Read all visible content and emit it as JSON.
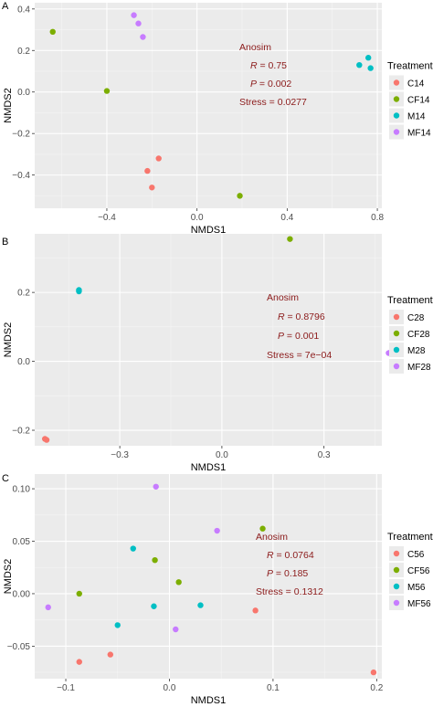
{
  "chart_data": [
    {
      "type": "scatter",
      "panel_label": "A",
      "xlabel": "NMDS1",
      "ylabel": "NMDS2",
      "xlim": [
        -0.72,
        0.82
      ],
      "ylim": [
        -0.56,
        0.43
      ],
      "x_ticks": [
        -0.4,
        0.0,
        0.4,
        0.8
      ],
      "x_tick_labels": [
        "−0.4",
        "0.0",
        "0.4",
        "0.8"
      ],
      "y_ticks": [
        0.4,
        0.2,
        0.0,
        -0.2,
        -0.4
      ],
      "y_tick_labels": [
        "0.4",
        "0.2",
        "0.0",
        "−0.2",
        "−0.4"
      ],
      "grid": true,
      "legend": {
        "title": "Treatment",
        "position": "right",
        "entries": [
          "C14",
          "CF14",
          "M14",
          "MF14"
        ]
      },
      "annotations": [
        "Anosim",
        "R = 0.75",
        "P = 0.002",
        "Stress = 0.0277"
      ],
      "series": [
        {
          "name": "C14",
          "color": "#F8766D",
          "points": [
            [
              -0.17,
              -0.32
            ],
            [
              -0.22,
              -0.38
            ],
            [
              -0.2,
              -0.46
            ]
          ]
        },
        {
          "name": "CF14",
          "color": "#7CAE00",
          "points": [
            [
              -0.64,
              0.29
            ],
            [
              -0.4,
              0.005
            ],
            [
              0.19,
              -0.5
            ]
          ]
        },
        {
          "name": "M14",
          "color": "#00BFC4",
          "points": [
            [
              0.72,
              0.13
            ],
            [
              0.76,
              0.165
            ],
            [
              0.77,
              0.115
            ]
          ]
        },
        {
          "name": "MF14",
          "color": "#C77CFF",
          "points": [
            [
              -0.28,
              0.37
            ],
            [
              -0.26,
              0.33
            ],
            [
              -0.24,
              0.265
            ]
          ]
        }
      ]
    },
    {
      "type": "scatter",
      "panel_label": "B",
      "xlabel": "NMDS1",
      "ylabel": "NMDS2",
      "xlim": [
        -0.55,
        0.47
      ],
      "ylim": [
        -0.245,
        0.37
      ],
      "x_ticks": [
        -0.3,
        0.0,
        0.3
      ],
      "x_tick_labels": [
        "−0.3",
        "0.0",
        "0.3"
      ],
      "y_ticks": [
        0.2,
        0.0,
        -0.2
      ],
      "y_tick_labels": [
        "0.2",
        "0.0",
        "−0.2"
      ],
      "grid": true,
      "legend": {
        "title": "Treatment",
        "position": "right",
        "entries": [
          "C28",
          "CF28",
          "M28",
          "MF28"
        ]
      },
      "annotations": [
        "Anosim",
        "R = 0.8796",
        "P = 0.001",
        "Stress = 7e−04"
      ],
      "series": [
        {
          "name": "C28",
          "color": "#F8766D",
          "points": [
            [
              -0.52,
              -0.225
            ],
            [
              -0.515,
              -0.228
            ]
          ]
        },
        {
          "name": "CF28",
          "color": "#7CAE00",
          "points": [
            [
              0.2,
              0.355
            ]
          ]
        },
        {
          "name": "M28",
          "color": "#00BFC4",
          "points": [
            [
              -0.42,
              0.207
            ],
            [
              -0.42,
              0.203
            ]
          ]
        },
        {
          "name": "MF28",
          "color": "#C77CFF",
          "points": [
            [
              0.49,
              0.024
            ],
            [
              0.495,
              0.026
            ],
            [
              0.5,
              0.025
            ]
          ]
        }
      ]
    },
    {
      "type": "scatter",
      "panel_label": "C",
      "xlabel": "NMDS1",
      "ylabel": "NMDS2",
      "xlim": [
        -0.13,
        0.205
      ],
      "ylim": [
        -0.081,
        0.114
      ],
      "x_ticks": [
        -0.1,
        0.0,
        0.1,
        0.2
      ],
      "x_tick_labels": [
        "−0.1",
        "0.0",
        "0.1",
        "0.2"
      ],
      "y_ticks": [
        0.1,
        0.05,
        0.0,
        -0.05
      ],
      "y_tick_labels": [
        "0.10",
        "0.05",
        "0.00",
        "−0.05"
      ],
      "grid": true,
      "legend": {
        "title": "Treatment",
        "position": "right",
        "entries": [
          "C56",
          "CF56",
          "M56",
          "MF56"
        ]
      },
      "annotations": [
        "Anosim",
        "R = 0.0764",
        "P = 0.185",
        "Stress = 0.1312"
      ],
      "series": [
        {
          "name": "C56",
          "color": "#F8766D",
          "points": [
            [
              -0.087,
              -0.065
            ],
            [
              -0.057,
              -0.058
            ],
            [
              0.083,
              -0.016
            ],
            [
              0.197,
              -0.075
            ]
          ]
        },
        {
          "name": "CF56",
          "color": "#7CAE00",
          "points": [
            [
              -0.087,
              0.0
            ],
            [
              -0.014,
              0.032
            ],
            [
              0.009,
              0.011
            ],
            [
              0.09,
              0.062
            ]
          ]
        },
        {
          "name": "M56",
          "color": "#00BFC4",
          "points": [
            [
              -0.035,
              0.043
            ],
            [
              -0.05,
              -0.03
            ],
            [
              -0.015,
              -0.012
            ],
            [
              0.03,
              -0.011
            ]
          ]
        },
        {
          "name": "MF56",
          "color": "#C77CFF",
          "points": [
            [
              -0.117,
              -0.013
            ],
            [
              -0.013,
              0.102
            ],
            [
              0.006,
              -0.034
            ],
            [
              0.046,
              0.06
            ]
          ]
        }
      ]
    }
  ]
}
